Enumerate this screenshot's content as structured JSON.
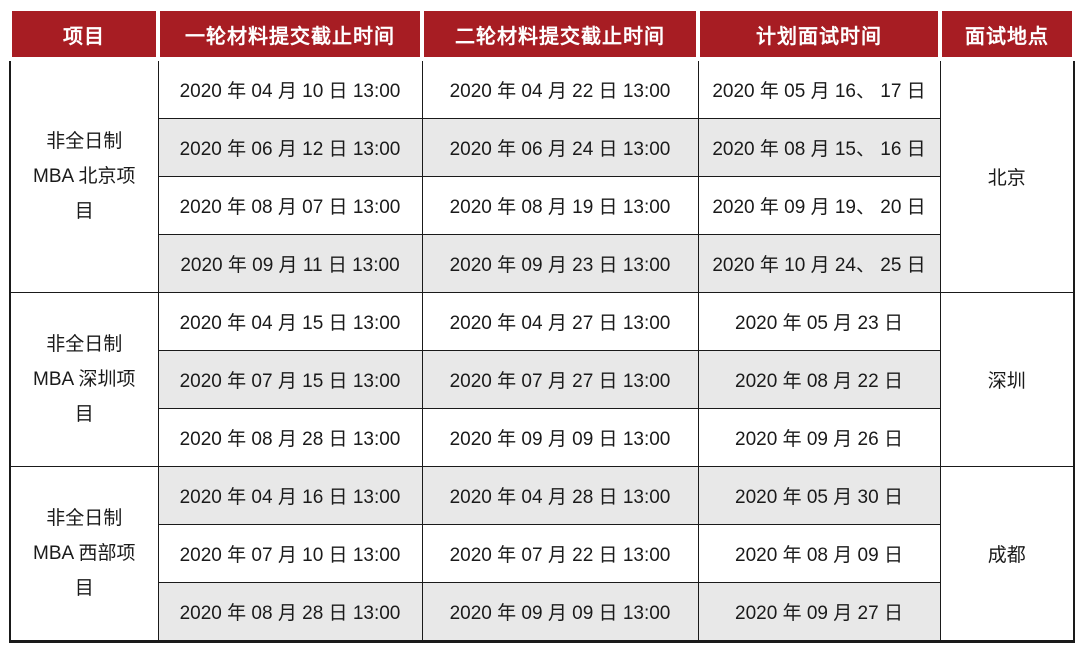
{
  "table": {
    "columns": [
      "项目",
      "一轮材料提交截止时间",
      "二轮材料提交截止时间",
      "计划面试时间",
      "面试地点"
    ],
    "groups": [
      {
        "project": "非全日制 MBA 北京项目",
        "location": "北京",
        "rows": [
          [
            "2020 年 04 月 10 日 13:00",
            "2020 年 04 月 22 日 13:00",
            "2020 年 05 月 16、 17 日"
          ],
          [
            "2020 年 06 月 12 日 13:00",
            "2020 年 06 月 24 日 13:00",
            "2020 年 08 月 15、 16 日"
          ],
          [
            "2020 年 08 月 07 日 13:00",
            "2020 年 08 月 19 日 13:00",
            "2020 年 09 月 19、 20 日"
          ],
          [
            "2020 年 09 月 11 日 13:00",
            "2020 年 09 月 23 日 13:00",
            "2020 年 10 月 24、 25 日"
          ]
        ]
      },
      {
        "project": "非全日制 MBA 深圳项目",
        "location": "深圳",
        "rows": [
          [
            "2020 年 04 月 15 日 13:00",
            "2020 年 04 月 27 日 13:00",
            "2020 年 05 月 23 日"
          ],
          [
            "2020 年 07 月 15 日 13:00",
            "2020 年 07 月 27 日 13:00",
            "2020 年 08 月 22 日"
          ],
          [
            "2020 年 08 月 28 日 13:00",
            "2020 年 09 月 09 日 13:00",
            "2020 年 09 月 26 日"
          ]
        ]
      },
      {
        "project": "非全日制 MBA 西部项目",
        "location": "成都",
        "rows": [
          [
            "2020 年 04 月 16 日 13:00",
            "2020 年 04 月 28 日 13:00",
            "2020 年 05 月 30 日"
          ],
          [
            "2020 年 07 月 10 日 13:00",
            "2020 年 07 月 22 日 13:00",
            "2020 年 08 月 09 日"
          ],
          [
            "2020 年 08 月 28 日 13:00",
            "2020 年 09 月 09 日 13:00",
            "2020 年 09 月 27 日"
          ]
        ]
      }
    ],
    "colors": {
      "header_bg": "#A71D23",
      "header_text": "#FFFFFF",
      "alt_row_bg": "#E8E8E8",
      "border": "#1A1A1A",
      "body_text": "#1A1A1A"
    },
    "zebra_first_row": "white"
  }
}
